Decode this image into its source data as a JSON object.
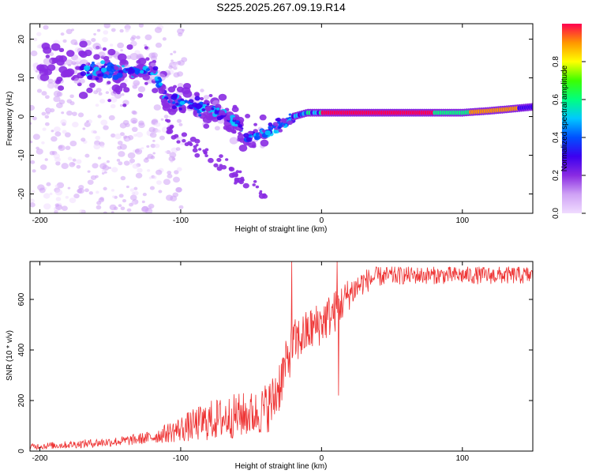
{
  "title": "S225.2025.267.09.19.R14",
  "chart_data": [
    {
      "type": "heatmap",
      "title": "S225.2025.267.09.19.R14",
      "xlabel": "Height of straight line (km)",
      "ylabel": "Frequency (Hz)",
      "xlim": [
        -207,
        150
      ],
      "ylim": [
        -25,
        24
      ],
      "xticks": [
        -200,
        -100,
        0,
        100
      ],
      "xtick_labels": [
        "-200",
        "-100",
        "0",
        "100"
      ],
      "yticks": [
        -20,
        -10,
        0,
        10,
        20
      ],
      "ytick_labels": [
        "-20",
        "-10",
        "0",
        "10",
        "20"
      ],
      "colorbar": {
        "label": "Normalized spectral amplitude",
        "range": [
          0,
          1
        ],
        "ticks": [
          0.0,
          0.2,
          0.4,
          0.6,
          0.8
        ],
        "tick_labels": [
          "0.0",
          "0.2",
          "0.4",
          "0.6",
          "0.8"
        ],
        "colors": [
          "#f0dcff",
          "#cfa2f5",
          "#8a2be2",
          "#3c00f0",
          "#0050ff",
          "#00c8ff",
          "#00ff80",
          "#3cff00",
          "#ffff00",
          "#ff9600",
          "#ff0050"
        ]
      },
      "ridge": {
        "description": "frequency vs height of dominant spectral ridge",
        "x": [
          -160,
          -140,
          -120,
          -110,
          -100,
          -90,
          -80,
          -70,
          -60,
          -50,
          -40,
          -30,
          -20,
          -10,
          0,
          10,
          20,
          40,
          60,
          80,
          100,
          120,
          150
        ],
        "y": [
          12,
          12,
          12,
          4,
          4,
          3,
          2,
          0,
          -2,
          -5,
          -4,
          -2,
          0,
          1,
          1,
          1,
          1,
          1,
          1,
          1,
          1,
          1.5,
          2.5
        ]
      }
    },
    {
      "type": "line",
      "xlabel": "Height of straight line (km)",
      "ylabel": "SNR (10 * v/v)",
      "xlim": [
        -207,
        150
      ],
      "ylim": [
        0,
        750
      ],
      "xticks": [
        -200,
        -100,
        0,
        100
      ],
      "xtick_labels": [
        "-200",
        "-100",
        "0",
        "100"
      ],
      "yticks": [
        0,
        200,
        400,
        600
      ],
      "ytick_labels": [
        "0",
        "200",
        "400",
        "600"
      ],
      "color": "#ee3333",
      "envelope": {
        "x": [
          -207,
          -180,
          -160,
          -140,
          -120,
          -100,
          -80,
          -60,
          -45,
          -35,
          -30,
          -25,
          -20,
          -10,
          0,
          10,
          20,
          30,
          40,
          60,
          80,
          100,
          120,
          150
        ],
        "low": [
          5,
          10,
          15,
          20,
          30,
          35,
          40,
          50,
          60,
          80,
          150,
          250,
          330,
          380,
          420,
          470,
          560,
          620,
          650,
          660,
          660,
          660,
          660,
          660
        ],
        "high": [
          30,
          40,
          50,
          60,
          80,
          140,
          200,
          230,
          240,
          300,
          380,
          440,
          520,
          560,
          600,
          640,
          690,
          720,
          730,
          730,
          730,
          730,
          730,
          730
        ]
      },
      "spikes": [
        {
          "x": -21,
          "y": 750
        },
        {
          "x": 11,
          "y": 750
        },
        {
          "x": 12,
          "y": 220
        }
      ]
    }
  ]
}
